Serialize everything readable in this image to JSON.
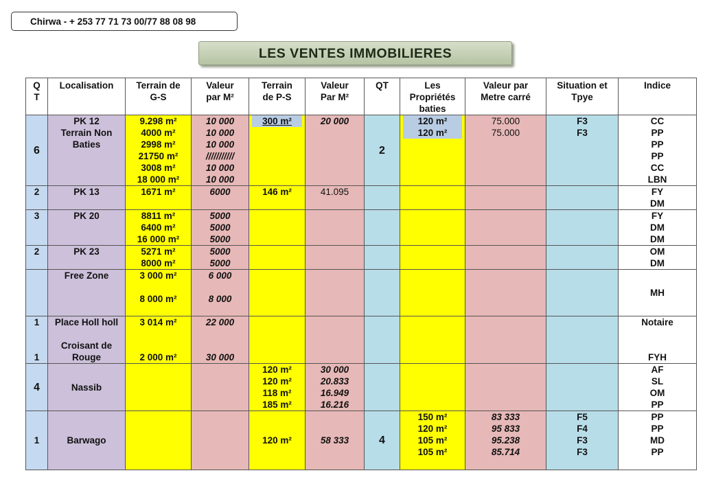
{
  "contact": "Chirwa - + 253 77 71 73 00/77 88 08 98",
  "title": "LES VENTES IMMOBILIERES",
  "colors": {
    "qt": "#c5d9f0",
    "localisation": "#ccc0da",
    "terrain": "#ffff00",
    "valeur": "#e6b8b7",
    "qt2": "#b7dde8",
    "situation": "#b7dde8",
    "indice": "#ffffff",
    "highlight": "#b8cce4"
  },
  "headers": [
    [
      "Q",
      "T"
    ],
    [
      "Localisation"
    ],
    [
      "Terrain de",
      "G-S"
    ],
    [
      "Valeur",
      "par M²"
    ],
    [
      "Terrain",
      "de P-S"
    ],
    [
      "Valeur",
      "Par M²"
    ],
    [
      "QT"
    ],
    [
      "Les",
      "Propriétés",
      "baties"
    ],
    [
      "Valeur par",
      "Metre carré"
    ],
    [
      "Situation et",
      "Tpye"
    ],
    [
      "Indice"
    ]
  ],
  "rows": [
    [
      [
        "6"
      ],
      [
        "PK 12",
        "Terrain Non",
        "Baties"
      ],
      [
        "9.298 m²",
        "4000  m²",
        "2998 m²",
        "21750 m²",
        "3008 m²",
        "18 000 m²"
      ],
      [
        "10 000",
        "10 000",
        "10 000",
        "///////////",
        "10 000",
        "10 000"
      ],
      [
        "300 m²"
      ],
      [
        "20 000"
      ],
      [
        "2"
      ],
      [
        "120 m²",
        "120 m²"
      ],
      [
        "75.000",
        "75.000"
      ],
      [
        "F3",
        "F3"
      ],
      [
        "CC",
        "PP",
        "PP",
        "PP",
        "CC",
        "LBN"
      ]
    ],
    [
      [
        "2"
      ],
      [
        "PK 13"
      ],
      [
        "1671 m²"
      ],
      [
        "6000"
      ],
      [
        "146 m²"
      ],
      [
        "41.095"
      ],
      [],
      [],
      [],
      [],
      [
        "FY",
        "DM"
      ]
    ],
    [
      [
        "3"
      ],
      [
        "PK 20"
      ],
      [
        "8811 m²",
        "6400 m²",
        "16 000 m²"
      ],
      [
        "5000",
        "5000",
        "5000"
      ],
      [],
      [],
      [],
      [],
      [],
      [],
      [
        "FY",
        "DM",
        "DM"
      ]
    ],
    [
      [
        "2"
      ],
      [
        "PK 23"
      ],
      [
        "5271 m²",
        "8000 m²"
      ],
      [
        "5000",
        "5000"
      ],
      [],
      [],
      [],
      [],
      [],
      [],
      [
        "OM",
        "DM"
      ]
    ],
    [
      [],
      [
        "Free Zone"
      ],
      [
        "3 000 m²",
        "",
        "8 000 m²"
      ],
      [
        "6 000",
        "",
        "8 000"
      ],
      [],
      [],
      [],
      [],
      [],
      [],
      [
        "MH"
      ]
    ],
    [
      [
        "1",
        "",
        "",
        "1"
      ],
      [
        "Place Holl holl",
        "",
        "Croisant de",
        "Rouge"
      ],
      [
        "3 014 m²",
        "",
        "",
        "2 000 m²"
      ],
      [
        "22 000",
        "",
        "",
        "30 000"
      ],
      [],
      [],
      [],
      [],
      [],
      [],
      [
        "Notaire",
        "",
        "",
        "FYH"
      ]
    ],
    [
      [
        "4"
      ],
      [
        "Nassib"
      ],
      [],
      [],
      [
        "120 m²",
        "120 m²",
        "118 m²",
        "185 m²"
      ],
      [
        "30 000",
        "20.833",
        "16.949",
        "16.216"
      ],
      [],
      [],
      [],
      [],
      [
        "AF",
        "SL",
        "OM",
        "PP"
      ]
    ],
    [
      [
        "1"
      ],
      [
        "Barwago"
      ],
      [],
      [],
      [
        "120 m²"
      ],
      [
        "58 333"
      ],
      [
        "4"
      ],
      [
        "150 m²",
        "120 m²",
        "105 m²",
        "105 m²"
      ],
      [
        "83 333",
        "95 833",
        "95.238",
        "85.714"
      ],
      [
        "F5",
        "F4",
        "F3",
        "F3"
      ],
      [
        "PP",
        "PP",
        "MD",
        "PP"
      ]
    ]
  ]
}
